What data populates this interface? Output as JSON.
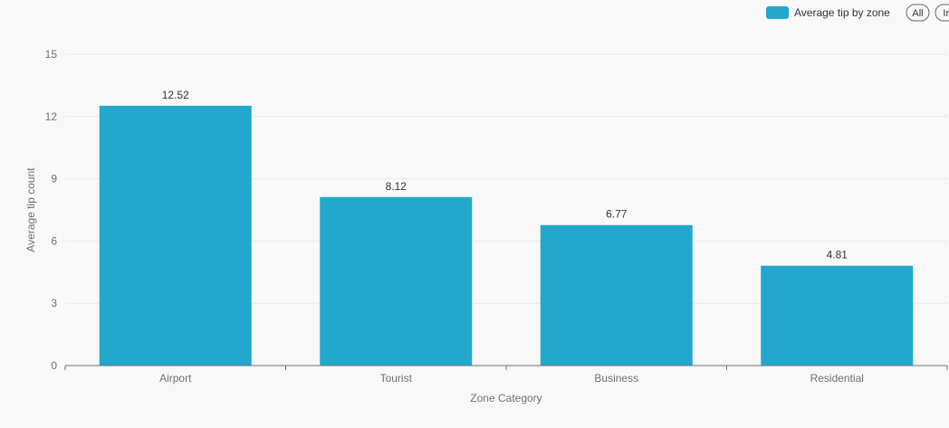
{
  "legend": {
    "series_name": "Average tip by zone",
    "buttons": [
      "All",
      "In"
    ]
  },
  "colors": {
    "bar": "#22a8cc",
    "grid": "#e6e8ee",
    "axis": "#6e7079",
    "background": "#f8f8f9"
  },
  "chart_data": {
    "type": "bar",
    "categories": [
      "Airport",
      "Tourist",
      "Business",
      "Residential"
    ],
    "series": [
      {
        "name": "Average tip by zone",
        "values": [
          12.52,
          8.12,
          6.77,
          4.81
        ]
      }
    ],
    "xlabel": "Zone Category",
    "ylabel": "Average tip count",
    "ylim": [
      0,
      15
    ],
    "yticks": [
      0,
      3,
      6,
      9,
      12,
      15
    ],
    "grid": true,
    "legend_position": "top-right",
    "data_labels": true
  }
}
